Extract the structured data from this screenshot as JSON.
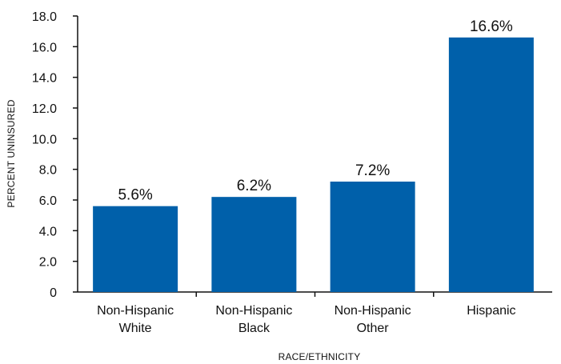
{
  "chart_data": {
    "type": "bar",
    "categories": [
      [
        "Non-Hispanic",
        "White"
      ],
      [
        "Non-Hispanic",
        "Black"
      ],
      [
        "Non-Hispanic",
        "Other"
      ],
      [
        "Hispanic"
      ]
    ],
    "values": [
      5.6,
      6.2,
      7.2,
      16.6
    ],
    "data_labels": [
      "5.6%",
      "6.2%",
      "7.2%",
      "16.6%"
    ],
    "xlabel": "RACE/ETHNICITY",
    "ylabel": "PERCENT UNINSURED",
    "ylim": [
      0,
      18
    ],
    "yticks": [
      0,
      2,
      4,
      6,
      8,
      10,
      12,
      14,
      16,
      18
    ],
    "ytick_labels": [
      "0",
      "2.0",
      "4.0",
      "6.0",
      "8.0",
      "10.0",
      "12.0",
      "14.0",
      "16.0",
      "18.0"
    ],
    "grid": false,
    "legend": "none",
    "bar_color": "#0060AA"
  }
}
